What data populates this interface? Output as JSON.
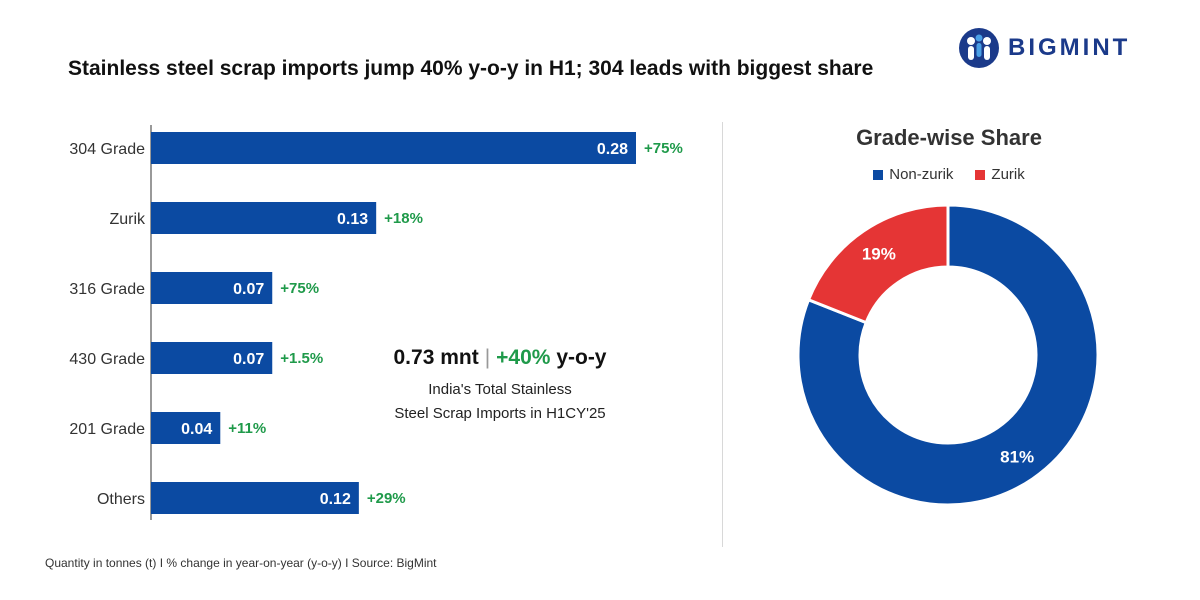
{
  "title": "Stainless steel scrap imports jump 40% y-o-y in H1; 304 leads with biggest share",
  "logo": {
    "text": "BIGMINT",
    "icon": "people-group-icon"
  },
  "callout": {
    "value": "0.73 mnt",
    "separator": "|",
    "change": "+40%",
    "change_suffix": "y-o-y",
    "line1": "India's Total Stainless",
    "line2": "Steel Scrap Imports in H1CY'25"
  },
  "footer": "Quantity in tonnes (t)  I  % change in year-on-year (y-o-y)  I  Source: BigMint",
  "colors": {
    "bar": "#0b4aa2",
    "green": "#1f9a4a",
    "non_zurik": "#0b4aa2",
    "zurik": "#e53535"
  },
  "chart_data": [
    {
      "type": "bar",
      "orientation": "horizontal",
      "categories": [
        "304 Grade",
        "Zurik",
        "316 Grade",
        "430 Grade",
        "201 Grade",
        "Others"
      ],
      "values": [
        0.28,
        0.13,
        0.07,
        0.07,
        0.04,
        0.12
      ],
      "value_labels": [
        "0.28",
        "0.13",
        "0.07",
        "0.07",
        "0.04",
        "0.12"
      ],
      "change_labels": [
        "+75%",
        "+18%",
        "+75%",
        "+1.5%",
        "+11%",
        "+29%"
      ],
      "xlim": [
        0,
        0.3
      ],
      "grid": false
    },
    {
      "type": "pie",
      "donut": true,
      "title": "Grade-wise Share",
      "legend_position": "top",
      "labels": [
        "Non-zurik",
        "Zurik"
      ],
      "values": [
        81,
        19
      ],
      "value_labels": [
        "81%",
        "19%"
      ]
    }
  ]
}
